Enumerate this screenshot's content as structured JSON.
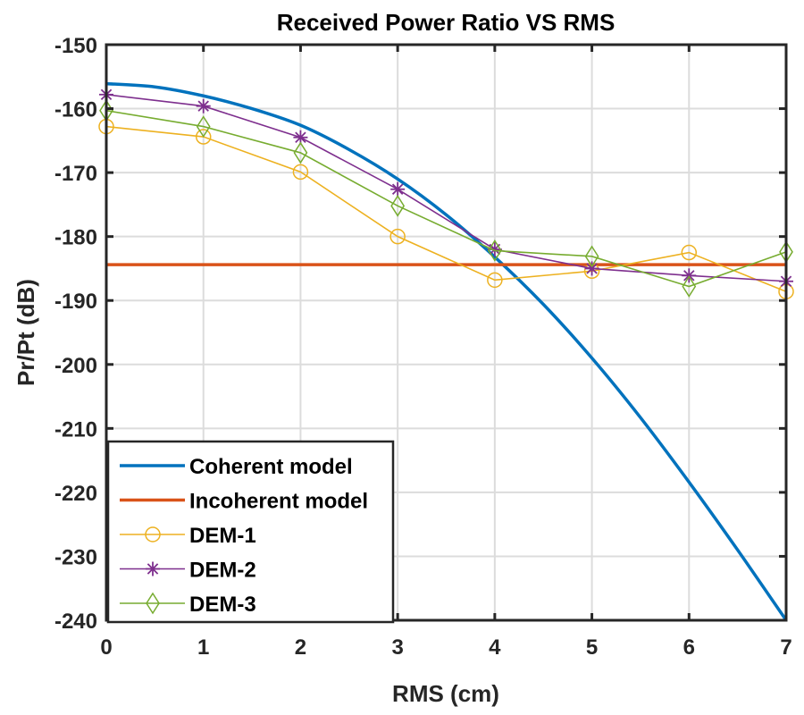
{
  "chart_data": {
    "type": "line",
    "title": "Received Power Ratio VS RMS",
    "xlabel": "RMS (cm)",
    "ylabel": "Pr/Pt (dB)",
    "xlim": [
      0,
      7
    ],
    "ylim": [
      -240,
      -150
    ],
    "xticks": [
      0,
      1,
      2,
      3,
      4,
      5,
      6,
      7
    ],
    "xtick_labels": [
      "0",
      "1",
      "2",
      "3",
      "4",
      "5",
      "6",
      "7"
    ],
    "yticks": [
      -150,
      -160,
      -170,
      -180,
      -190,
      -200,
      -210,
      -220,
      -230,
      -240
    ],
    "ytick_labels": [
      "-150",
      "-160",
      "-170",
      "-180",
      "-190",
      "-200",
      "-210",
      "-220",
      "-230",
      "-240"
    ],
    "grid": true,
    "legend_position": "bottom-left",
    "series": [
      {
        "name": "Coherent model",
        "color": "#0072BD",
        "marker": "none",
        "smooth": true,
        "x": [
          0,
          0.5,
          1,
          1.5,
          2,
          2.5,
          3,
          3.5,
          4,
          4.5,
          5,
          5.5,
          6,
          6.5,
          7
        ],
        "y": [
          -156.1,
          -156.6,
          -158.0,
          -160.0,
          -162.6,
          -166.4,
          -171.0,
          -176.6,
          -183.2,
          -190.6,
          -199.0,
          -208.3,
          -218.4,
          -229.0,
          -240.0
        ]
      },
      {
        "name": "Incoherent model",
        "color": "#D95319",
        "marker": "none",
        "x": [
          0,
          7
        ],
        "y": [
          -184.4,
          -184.4
        ]
      },
      {
        "name": "DEM-1",
        "color": "#EDB120",
        "marker": "circle",
        "x": [
          0,
          1,
          2,
          3,
          4,
          5,
          6,
          7
        ],
        "y": [
          -162.8,
          -164.4,
          -169.9,
          -180.0,
          -186.8,
          -185.4,
          -182.5,
          -188.6
        ]
      },
      {
        "name": "DEM-2",
        "color": "#7E2F8E",
        "marker": "star",
        "x": [
          0,
          1,
          2,
          3,
          4,
          5,
          6,
          7
        ],
        "y": [
          -157.8,
          -159.6,
          -164.5,
          -172.6,
          -182.0,
          -185.0,
          -186.1,
          -187.0
        ]
      },
      {
        "name": "DEM-3",
        "color": "#77AC30",
        "marker": "diamond",
        "x": [
          0,
          1,
          2,
          3,
          4,
          5,
          6,
          7
        ],
        "y": [
          -160.3,
          -162.8,
          -166.9,
          -175.2,
          -182.2,
          -183.1,
          -187.8,
          -182.4
        ]
      }
    ]
  }
}
